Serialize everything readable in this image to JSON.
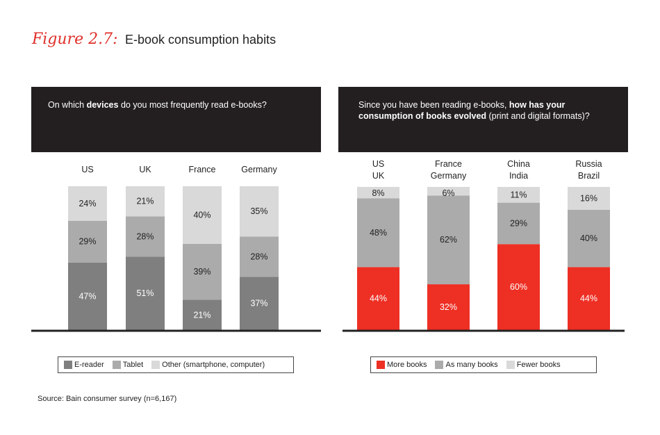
{
  "figure": {
    "label": "Figure 2.7:",
    "title": "E-book consumption habits",
    "source": "Source: Bain consumer survey (n=6,167)"
  },
  "colors": {
    "ereader": "#7f7f7f",
    "tablet": "#ababab",
    "other": "#d9d9d9",
    "more": "#ee2f24",
    "as_many": "#ababab",
    "fewer": "#d9d9d9",
    "header_bg": "#231f20"
  },
  "left_panel": {
    "question": {
      "prefix": "On which ",
      "bold": "devices",
      "suffix": " do you most frequently read e-books?"
    },
    "legend": [
      "E-reader",
      "Tablet",
      "Other (smartphone, computer)"
    ]
  },
  "right_panel": {
    "question": {
      "prefix": "Since you have been reading e-books, ",
      "bold": "how has your consumption of books evolved",
      "suffix": " (print and digital formats)?"
    },
    "legend": [
      "More books",
      "As many books",
      "Fewer books"
    ]
  },
  "chart_data": [
    {
      "type": "bar",
      "stacked": true,
      "categories": [
        "US",
        "UK",
        "France",
        "Germany"
      ],
      "series": [
        {
          "name": "E-reader",
          "values": [
            47,
            51,
            21,
            37
          ],
          "labels": [
            "47%",
            "51%",
            "21%",
            "37%"
          ]
        },
        {
          "name": "Tablet",
          "values": [
            29,
            28,
            39,
            28
          ],
          "labels": [
            "29%",
            "28%",
            "39%",
            "28%"
          ]
        },
        {
          "name": "Other (smartphone, computer)",
          "values": [
            24,
            21,
            40,
            35
          ],
          "labels": [
            "24%",
            "21%",
            "40%",
            "35%"
          ]
        }
      ],
      "ylim": [
        0,
        100
      ],
      "grid": false,
      "legend_position": "bottom"
    },
    {
      "type": "bar",
      "stacked": true,
      "categories": [
        [
          "US",
          "UK"
        ],
        [
          "France",
          "Germany"
        ],
        [
          "China",
          "India"
        ],
        [
          "Russia",
          "Brazil"
        ]
      ],
      "series": [
        {
          "name": "More books",
          "values": [
            44,
            32,
            60,
            44
          ],
          "labels": [
            "44%",
            "32%",
            "60%",
            "44%"
          ]
        },
        {
          "name": "As many books",
          "values": [
            48,
            62,
            29,
            40
          ],
          "labels": [
            "48%",
            "62%",
            "29%",
            "40%"
          ]
        },
        {
          "name": "Fewer books",
          "values": [
            8,
            6,
            11,
            16
          ],
          "labels": [
            "8%",
            "6%",
            "11%",
            "16%"
          ]
        }
      ],
      "ylim": [
        0,
        100
      ],
      "grid": false,
      "legend_position": "bottom"
    }
  ]
}
